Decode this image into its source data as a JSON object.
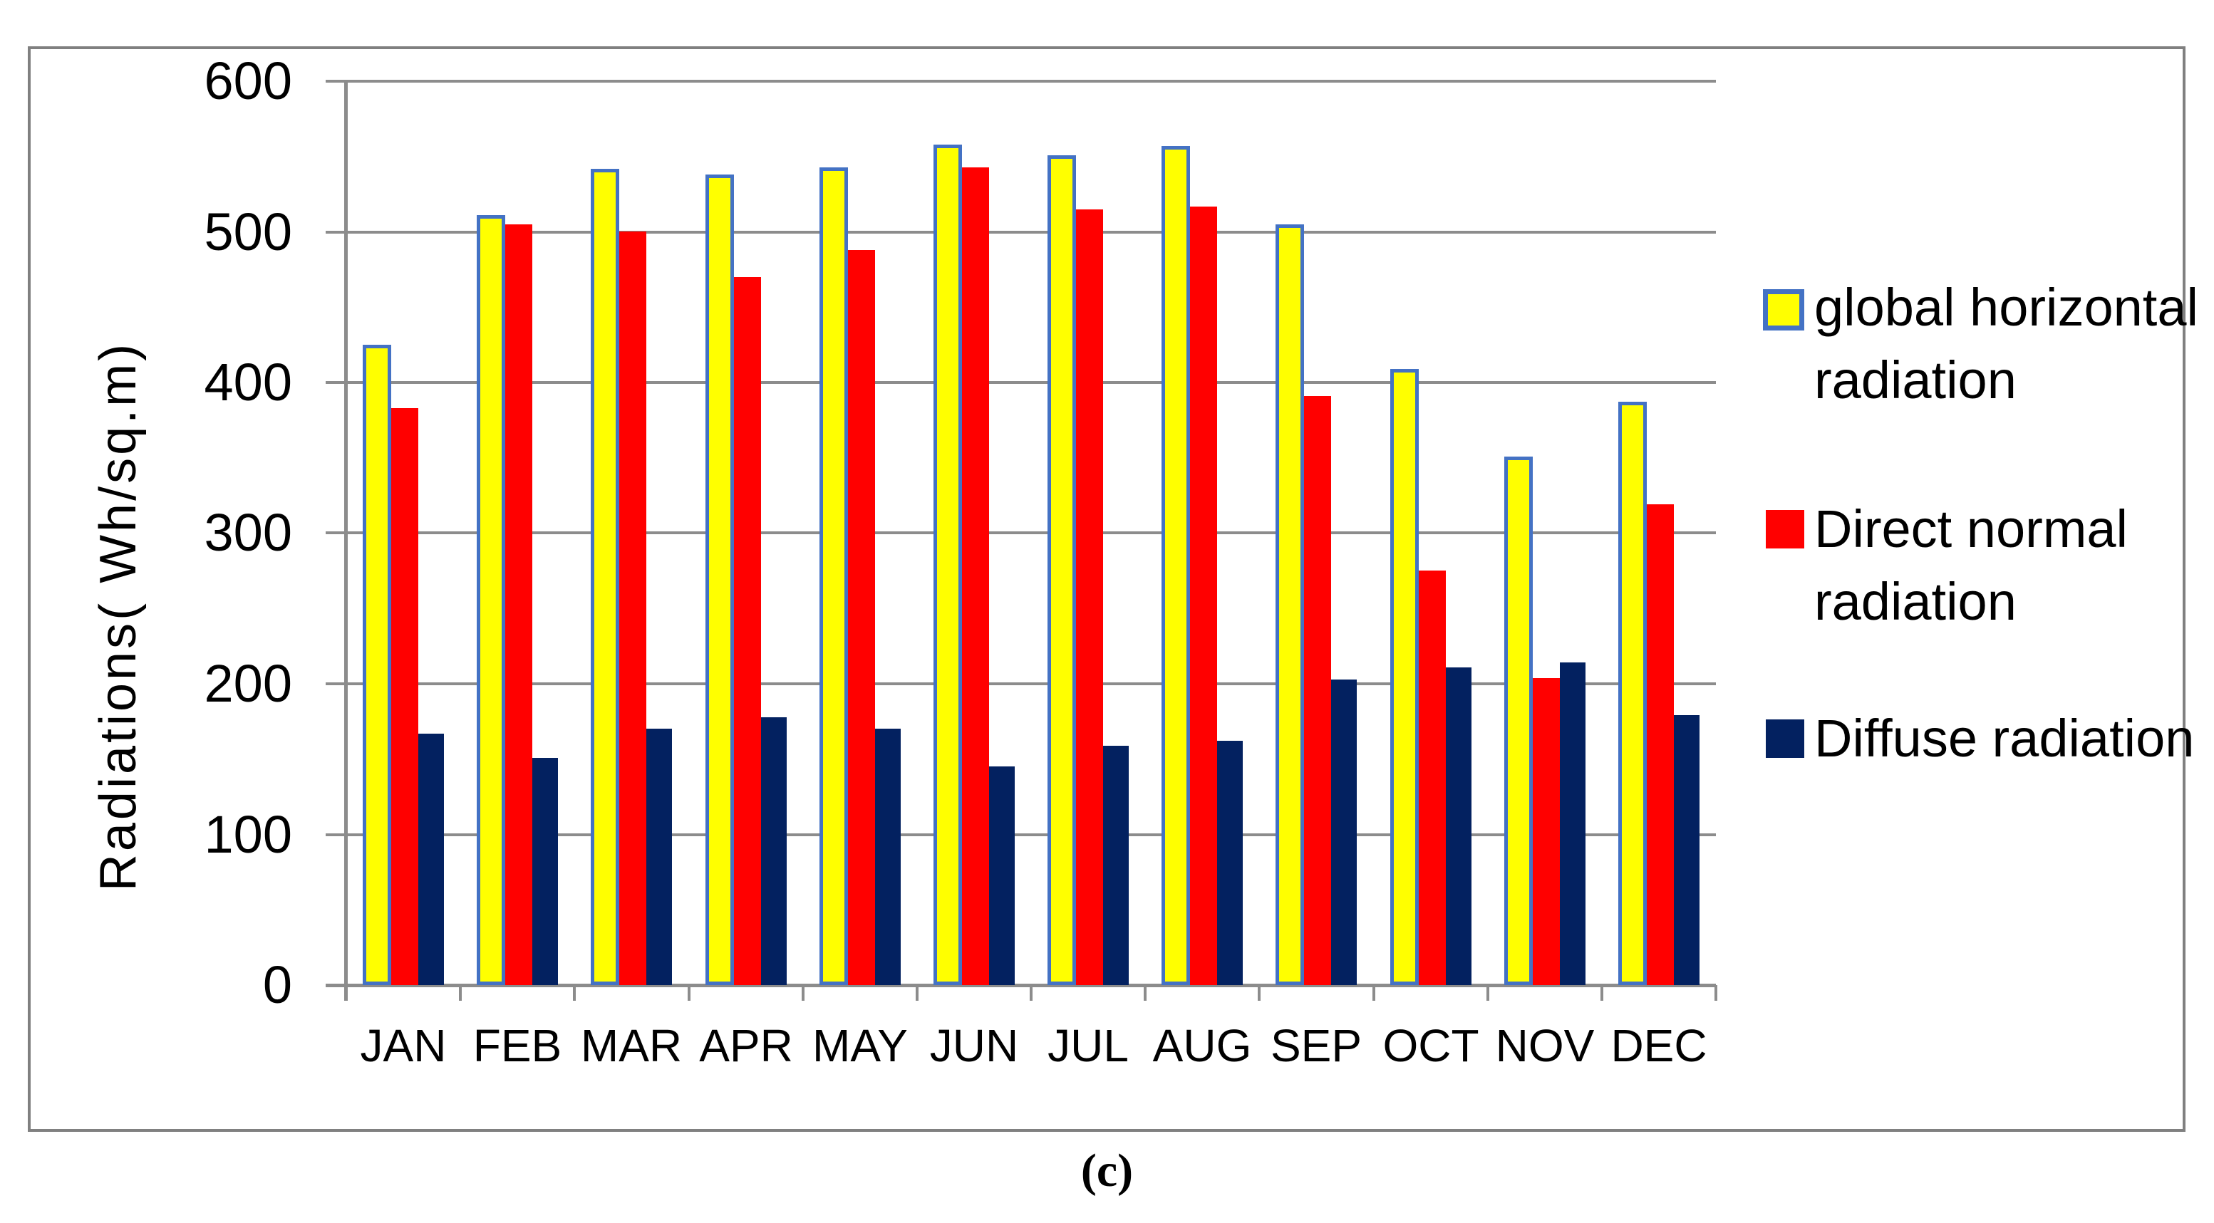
{
  "figure": {
    "caption": "(c)"
  },
  "chart_data": {
    "type": "bar",
    "title": "",
    "xlabel": "",
    "ylabel": "Radiations( Wh/sq.m)",
    "ylim": [
      0,
      600
    ],
    "yticks": [
      0,
      100,
      200,
      300,
      400,
      500,
      600
    ],
    "grid": true,
    "legend_position": "right",
    "categories": [
      "JAN",
      "FEB",
      "MAR",
      "APR",
      "MAY",
      "JUN",
      "JUL",
      "AUG",
      "SEP",
      "OCT",
      "NOV",
      "DEC"
    ],
    "series": [
      {
        "name": "global horizontal radiation",
        "color": "#FFFF00",
        "border_color": "#4472C4",
        "values": [
          425,
          511,
          542,
          538,
          543,
          558,
          551,
          557,
          505,
          409,
          351,
          387
        ]
      },
      {
        "name": "Direct normal radiation",
        "color": "#FF0000",
        "border_color": null,
        "values": [
          383,
          505,
          500,
          470,
          488,
          543,
          515,
          517,
          391,
          275,
          204,
          319
        ]
      },
      {
        "name": "Diffuse radiation",
        "color": "#032160",
        "border_color": null,
        "values": [
          167,
          151,
          170,
          178,
          170,
          145,
          159,
          162,
          203,
          211,
          214,
          179
        ]
      }
    ]
  },
  "colors": {
    "background": "#FFFFFF",
    "frame_border": "#808080",
    "gridline": "#8C8C8C",
    "axis": "#8C8C8C",
    "text": "#000000"
  }
}
